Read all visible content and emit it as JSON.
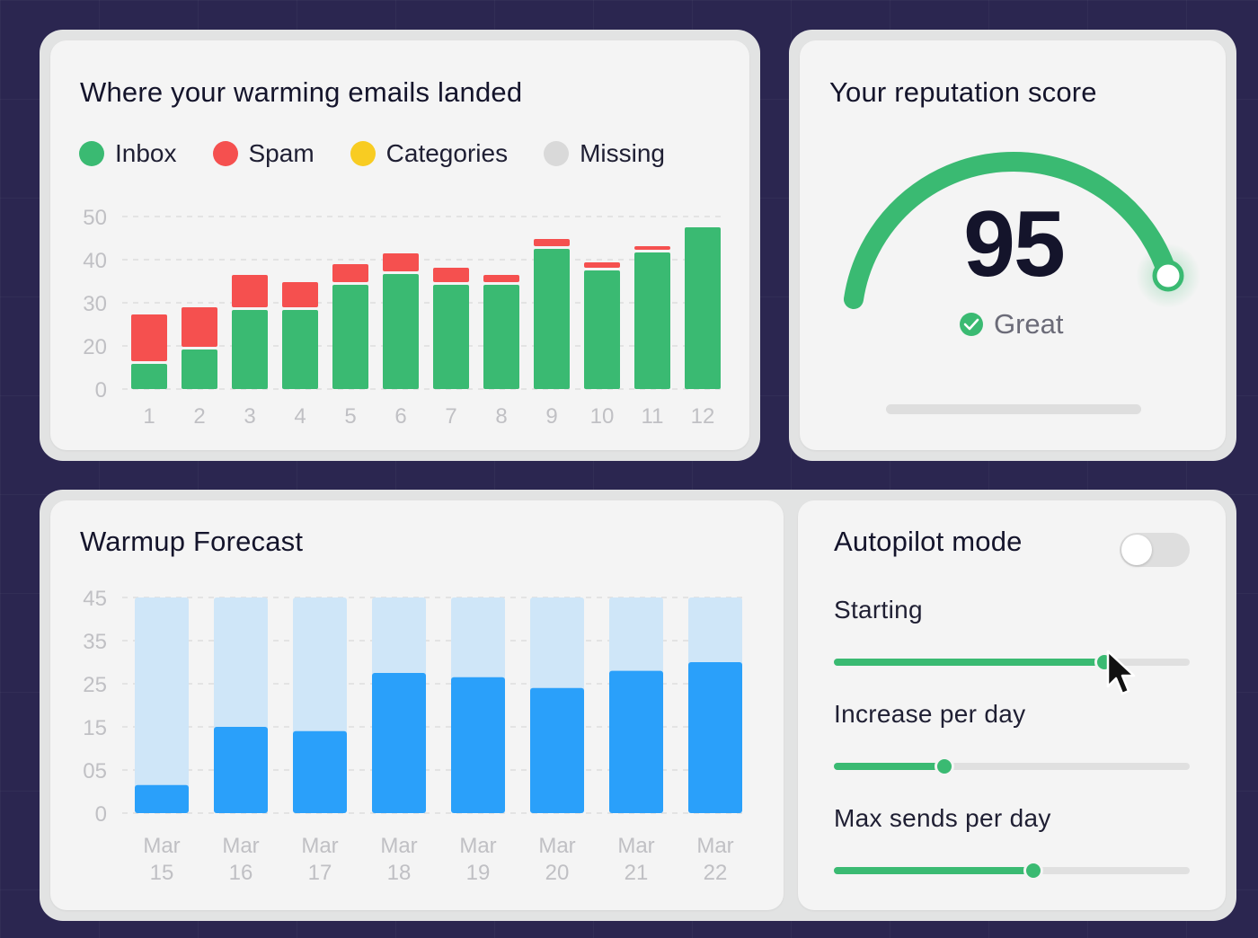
{
  "landing": {
    "title": "Where your warming emails landed",
    "legend": [
      {
        "label": "Inbox",
        "color": "#3aba72"
      },
      {
        "label": "Spam",
        "color": "#f5504f"
      },
      {
        "label": "Categories",
        "color": "#f8cc22"
      },
      {
        "label": "Missing",
        "color": "#d9d9d9"
      }
    ]
  },
  "reputation": {
    "title": "Your reputation score",
    "score": "95",
    "status": "Great",
    "score_value": 95,
    "score_max": 100
  },
  "forecast": {
    "title": "Warmup Forecast"
  },
  "autopilot": {
    "title": "Autopilot mode",
    "toggle_on": false,
    "sliders": [
      {
        "label": "Starting",
        "value": 0.76
      },
      {
        "label": "Increase per day",
        "value": 0.31
      },
      {
        "label": "Max sends per day",
        "value": 0.56
      }
    ]
  },
  "chart_data": [
    {
      "type": "bar",
      "stacked": true,
      "title": "Where your warming emails landed",
      "categories": [
        "1",
        "2",
        "3",
        "4",
        "5",
        "6",
        "7",
        "8",
        "9",
        "10",
        "11",
        "12"
      ],
      "yticks": [
        "0",
        "20",
        "30",
        "40",
        "50"
      ],
      "series": [
        {
          "name": "Inbox",
          "color": "#3aba72",
          "values": [
            7,
            11,
            22,
            22,
            29,
            32,
            29,
            29,
            39,
            33,
            38,
            45
          ]
        },
        {
          "name": "Spam",
          "color": "#f5504f",
          "values": [
            13,
            11,
            9,
            7,
            5,
            5,
            4,
            2,
            2,
            1.5,
            1,
            0
          ]
        }
      ],
      "grid": true,
      "legend": "top-left"
    },
    {
      "type": "bar",
      "stacked": true,
      "title": "Warmup Forecast",
      "categories": [
        [
          "Mar",
          "15"
        ],
        [
          "Mar",
          "16"
        ],
        [
          "Mar",
          "17"
        ],
        [
          "Mar",
          "18"
        ],
        [
          "Mar",
          "19"
        ],
        [
          "Mar",
          "20"
        ],
        [
          "Mar",
          "21"
        ],
        [
          "Mar",
          "22"
        ]
      ],
      "yticks": [
        "0",
        "05",
        "15",
        "25",
        "35",
        "45"
      ],
      "series": [
        {
          "color": "#2aa0fa",
          "values": [
            6.5,
            20,
            19,
            32.5,
            31.5,
            29,
            33,
            35
          ]
        },
        {
          "color": "#cfe6f8",
          "values": [
            50,
            50,
            50,
            50,
            50,
            50,
            50,
            50
          ],
          "total": true
        }
      ],
      "grid": true
    }
  ]
}
